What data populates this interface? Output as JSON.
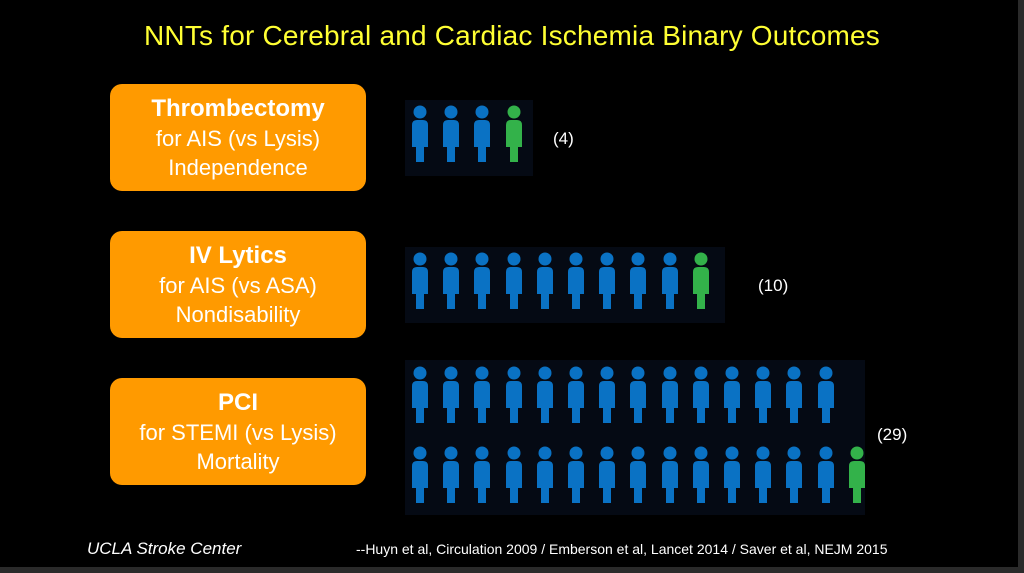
{
  "title": "NNTs for Cerebral and Cardiac Ischemia Binary Outcomes",
  "colors": {
    "card": "#ff9a00",
    "treated_person": "#0a72c4",
    "benefit_person": "#33b24a",
    "title": "#ffff33"
  },
  "icons": {
    "person": "person-icon"
  },
  "outcomes": [
    {
      "heading": "Thrombectomy",
      "line1": "for AIS (vs Lysis)",
      "line2": "Independence",
      "nnt": 4,
      "nnt_label": "(4)"
    },
    {
      "heading": "IV Lytics",
      "line1": "for AIS (vs ASA)",
      "line2": "Nondisability",
      "nnt": 10,
      "nnt_label": "(10)"
    },
    {
      "heading": "PCI",
      "line1": "for STEMI (vs Lysis)",
      "line2": "Mortality",
      "nnt": 29,
      "nnt_label": "(29)"
    }
  ],
  "footer": {
    "left": "UCLA Stroke Center",
    "right": "--Huyn et al, Circulation 2009 / Emberson et al, Lancet 2014 / Saver et al, NEJM 2015"
  }
}
